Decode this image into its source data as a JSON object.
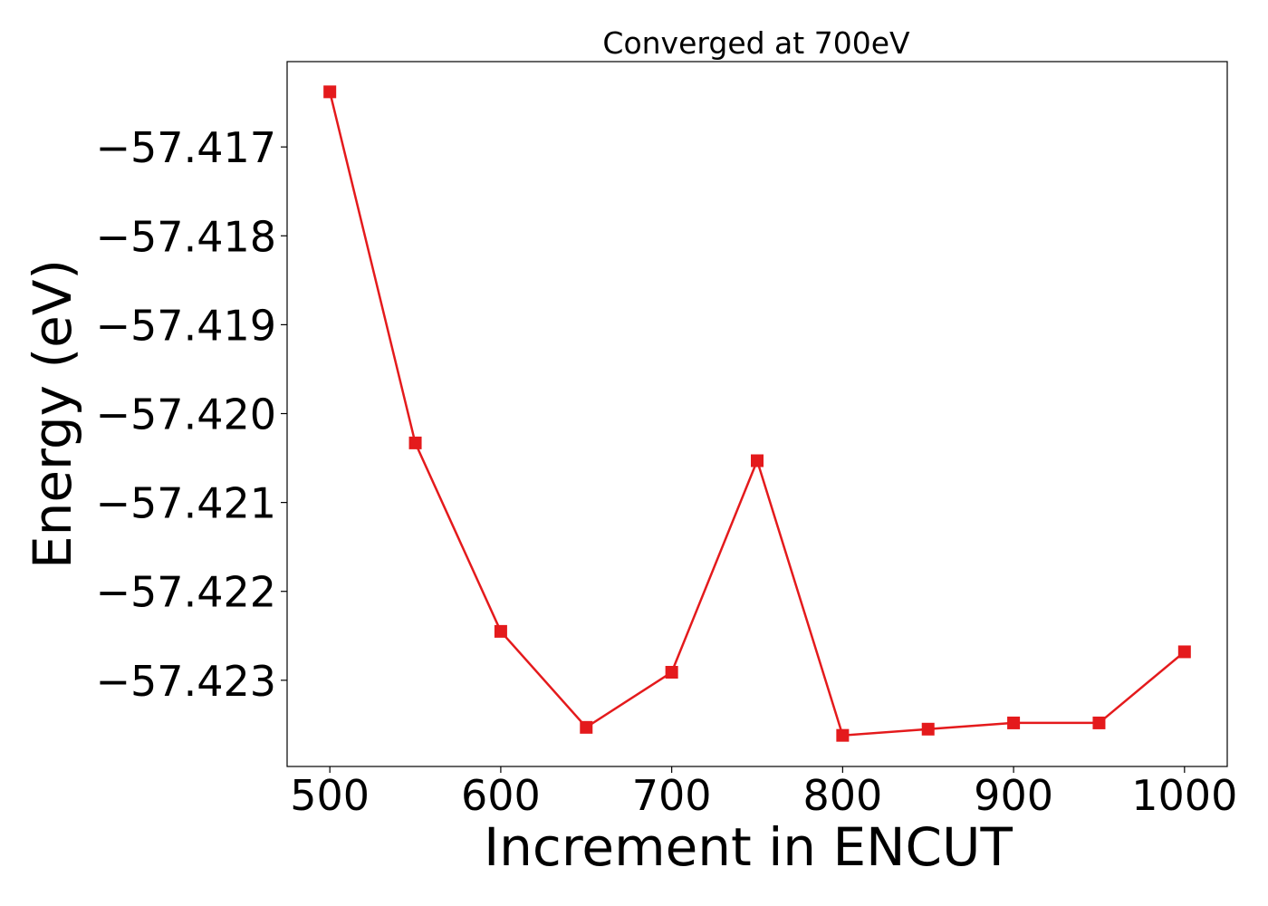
{
  "chart_data": {
    "type": "line",
    "title": "Converged at 700eV",
    "xlabel": "Increment in ENCUT",
    "ylabel": "Energy (eV)",
    "xlim": [
      475,
      1025
    ],
    "ylim": [
      -57.42397,
      -57.41604
    ],
    "x_ticks": [
      500,
      600,
      700,
      800,
      900,
      1000
    ],
    "x_tick_labels": [
      "500",
      "600",
      "700",
      "800",
      "900",
      "1000"
    ],
    "y_ticks": [
      -57.417,
      -57.418,
      -57.419,
      -57.42,
      -57.421,
      -57.422,
      -57.423
    ],
    "y_tick_labels": [
      "−57.417",
      "−57.418",
      "−57.419",
      "−57.420",
      "−57.421",
      "−57.422",
      "−57.423"
    ],
    "grid": false,
    "marker": "square",
    "color": "#e41a1c",
    "series": [
      {
        "x": [
          500,
          550,
          600,
          650,
          700,
          750,
          800,
          850,
          900,
          950,
          1000
        ],
        "y": [
          -57.41638,
          -57.42033,
          -57.42245,
          -57.42353,
          -57.42291,
          -57.42053,
          -57.42362,
          -57.42355,
          -57.42348,
          -57.42348,
          -57.42268
        ]
      }
    ]
  }
}
